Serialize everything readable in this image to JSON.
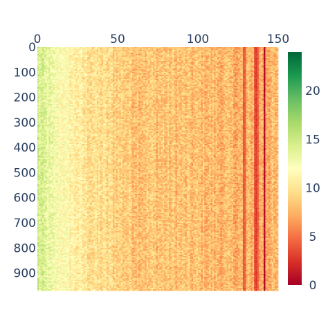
{
  "chart_data": {
    "type": "heatmap",
    "title": "",
    "xlabel": "",
    "ylabel": "",
    "x_axis_position": "top",
    "y_axis_reversed": true,
    "n_columns": 150,
    "n_rows": 1000,
    "xlim": [
      0,
      150
    ],
    "ylim": [
      0,
      970
    ],
    "x_ticks": [
      0,
      50,
      100,
      150
    ],
    "y_ticks": [
      0,
      100,
      200,
      300,
      400,
      500,
      600,
      700,
      800,
      900
    ],
    "colorscale": {
      "name": "RdYlGn",
      "min": 0,
      "max": 24,
      "ticks": [
        0,
        5,
        10,
        15,
        20
      ],
      "stops": [
        "#a50026",
        "#d73027",
        "#f46d43",
        "#fdae61",
        "#fee08b",
        "#ffffbf",
        "#d9ef8b",
        "#a6d96a",
        "#66bd63",
        "#1a9850",
        "#006837"
      ]
    },
    "value_profile": {
      "description_of_trend": "values decrease from left to right",
      "anchors": [
        {
          "x": 0,
          "value": 14.5
        },
        {
          "x": 10,
          "value": 12.5
        },
        {
          "x": 30,
          "value": 10.0
        },
        {
          "x": 60,
          "value": 8.5
        },
        {
          "x": 100,
          "value": 8.0
        },
        {
          "x": 125,
          "value": 7.5
        },
        {
          "x": 150,
          "value": 7.5
        }
      ],
      "dark_columns": [
        {
          "x": 128,
          "value": 4.0
        },
        {
          "x": 129,
          "value": 4.5
        },
        {
          "x": 135,
          "value": 3.5
        },
        {
          "x": 136,
          "value": 3.0
        },
        {
          "x": 137,
          "value": 4.5
        },
        {
          "x": 141,
          "value": 0.5
        }
      ]
    }
  }
}
